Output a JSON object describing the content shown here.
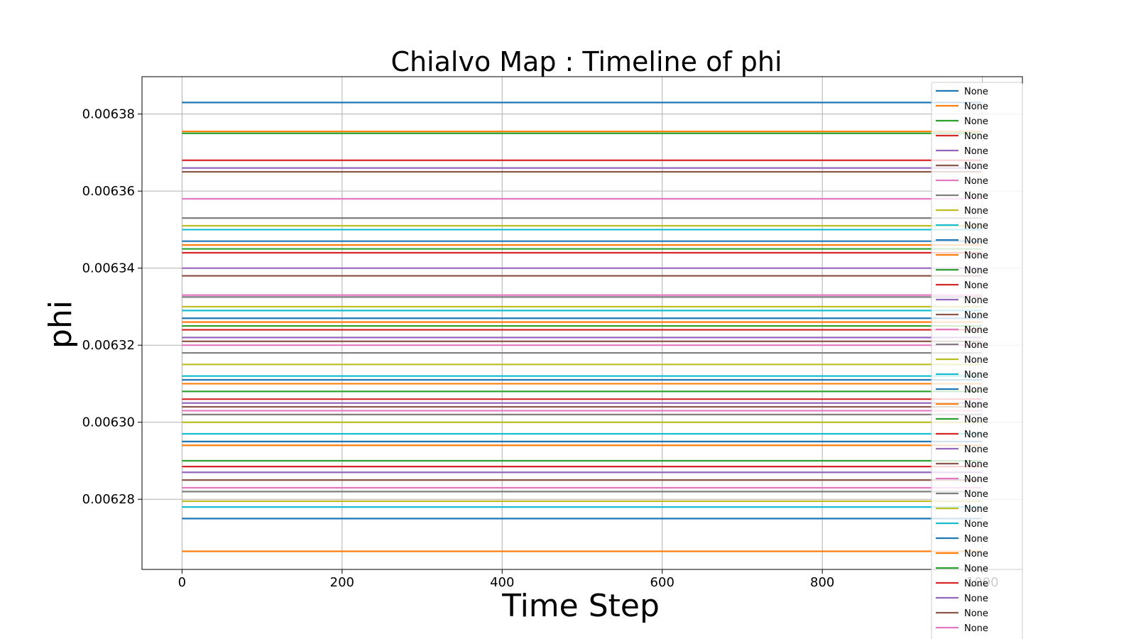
{
  "chart_data": {
    "type": "line",
    "title": "Chialvo Map : Timeline of phi",
    "xlabel": "Time Step",
    "ylabel": "phi",
    "xlim": [
      -50,
      1050
    ],
    "ylim": [
      0.0062618,
      0.0063897
    ],
    "xticks": [
      0,
      200,
      400,
      600,
      800,
      1000
    ],
    "xtick_labels": [
      "0",
      "200",
      "400",
      "600",
      "800",
      "1000"
    ],
    "yticks": [
      0.00628,
      0.0063,
      0.00632,
      0.00634,
      0.00636,
      0.00638
    ],
    "ytick_labels": [
      "0.00628",
      "0.00630",
      "0.00632",
      "0.00634",
      "0.00636",
      "0.00638"
    ],
    "grid": true,
    "legend_position": "right (overflowing below plot)",
    "x_range": [
      0,
      999
    ],
    "colors": [
      "#1f77b4",
      "#ff7f0e",
      "#2ca02c",
      "#d62728",
      "#9467bd",
      "#8c564b",
      "#e377c2",
      "#7f7f7f",
      "#bcbd22",
      "#17becf"
    ],
    "series": [
      {
        "name": "None",
        "values": [
          0.006383,
          0.006383
        ]
      },
      {
        "name": "None",
        "values": [
          0.0063755,
          0.0063755
        ]
      },
      {
        "name": "None",
        "values": [
          0.006375,
          0.006375
        ]
      },
      {
        "name": "None",
        "values": [
          0.006368,
          0.006368
        ]
      },
      {
        "name": "None",
        "values": [
          0.006366,
          0.006366
        ]
      },
      {
        "name": "None",
        "values": [
          0.006365,
          0.006365
        ]
      },
      {
        "name": "None",
        "values": [
          0.006358,
          0.006358
        ]
      },
      {
        "name": "None",
        "values": [
          0.006353,
          0.006353
        ]
      },
      {
        "name": "None",
        "values": [
          0.006351,
          0.006351
        ]
      },
      {
        "name": "None",
        "values": [
          0.00635,
          0.00635
        ]
      },
      {
        "name": "None",
        "values": [
          0.006347,
          0.006347
        ]
      },
      {
        "name": "None",
        "values": [
          0.006346,
          0.006346
        ]
      },
      {
        "name": "None",
        "values": [
          0.006345,
          0.006345
        ]
      },
      {
        "name": "None",
        "values": [
          0.006344,
          0.006344
        ]
      },
      {
        "name": "None",
        "values": [
          0.00634,
          0.00634
        ]
      },
      {
        "name": "None",
        "values": [
          0.006338,
          0.006338
        ]
      },
      {
        "name": "None",
        "values": [
          0.006333,
          0.006333
        ]
      },
      {
        "name": "None",
        "values": [
          0.0063325,
          0.0063325
        ]
      },
      {
        "name": "None",
        "values": [
          0.00633,
          0.00633
        ]
      },
      {
        "name": "None",
        "values": [
          0.006329,
          0.006329
        ]
      },
      {
        "name": "None",
        "values": [
          0.006327,
          0.006327
        ]
      },
      {
        "name": "None",
        "values": [
          0.006326,
          0.006326
        ]
      },
      {
        "name": "None",
        "values": [
          0.006325,
          0.006325
        ]
      },
      {
        "name": "None",
        "values": [
          0.006324,
          0.006324
        ]
      },
      {
        "name": "None",
        "values": [
          0.006322,
          0.006322
        ]
      },
      {
        "name": "None",
        "values": [
          0.006321,
          0.006321
        ]
      },
      {
        "name": "None",
        "values": [
          0.00632,
          0.00632
        ]
      },
      {
        "name": "None",
        "values": [
          0.006318,
          0.006318
        ]
      },
      {
        "name": "None",
        "values": [
          0.006315,
          0.006315
        ]
      },
      {
        "name": "None",
        "values": [
          0.006312,
          0.006312
        ]
      },
      {
        "name": "None",
        "values": [
          0.006311,
          0.006311
        ]
      },
      {
        "name": "None",
        "values": [
          0.00631,
          0.00631
        ]
      },
      {
        "name": "None",
        "values": [
          0.006308,
          0.006308
        ]
      },
      {
        "name": "None",
        "values": [
          0.006306,
          0.006306
        ]
      },
      {
        "name": "None",
        "values": [
          0.006305,
          0.006305
        ]
      },
      {
        "name": "None",
        "values": [
          0.006304,
          0.006304
        ]
      },
      {
        "name": "None",
        "values": [
          0.006303,
          0.006303
        ]
      },
      {
        "name": "None",
        "values": [
          0.006302,
          0.006302
        ]
      },
      {
        "name": "None",
        "values": [
          0.0063,
          0.0063
        ]
      },
      {
        "name": "None",
        "values": [
          0.006297,
          0.006297
        ]
      },
      {
        "name": "None",
        "values": [
          0.006295,
          0.006295
        ]
      },
      {
        "name": "None",
        "values": [
          0.006294,
          0.006294
        ]
      },
      {
        "name": "None",
        "values": [
          0.00629,
          0.00629
        ]
      },
      {
        "name": "None",
        "values": [
          0.0062885,
          0.0062885
        ]
      },
      {
        "name": "None",
        "values": [
          0.006287,
          0.006287
        ]
      },
      {
        "name": "None",
        "values": [
          0.006285,
          0.006285
        ]
      },
      {
        "name": "None",
        "values": [
          0.006283,
          0.006283
        ]
      },
      {
        "name": "None",
        "values": [
          0.006282,
          0.006282
        ]
      },
      {
        "name": "None",
        "values": [
          0.0062795,
          0.0062795
        ]
      },
      {
        "name": "None",
        "values": [
          0.006278,
          0.006278
        ]
      },
      {
        "name": "None",
        "values": [
          0.006275,
          0.006275
        ]
      },
      {
        "name": "None",
        "values": [
          0.0062665,
          0.0062665
        ]
      }
    ],
    "legend_entries": [
      "None",
      "None",
      "None",
      "None",
      "None",
      "None",
      "None",
      "None",
      "None",
      "None",
      "None",
      "None",
      "None",
      "None",
      "None",
      "None",
      "None",
      "None",
      "None",
      "None",
      "None",
      "None",
      "None",
      "None",
      "None",
      "None",
      "None",
      "None",
      "None",
      "None",
      "None",
      "None",
      "None",
      "None",
      "None",
      "None",
      "None",
      "None"
    ]
  }
}
